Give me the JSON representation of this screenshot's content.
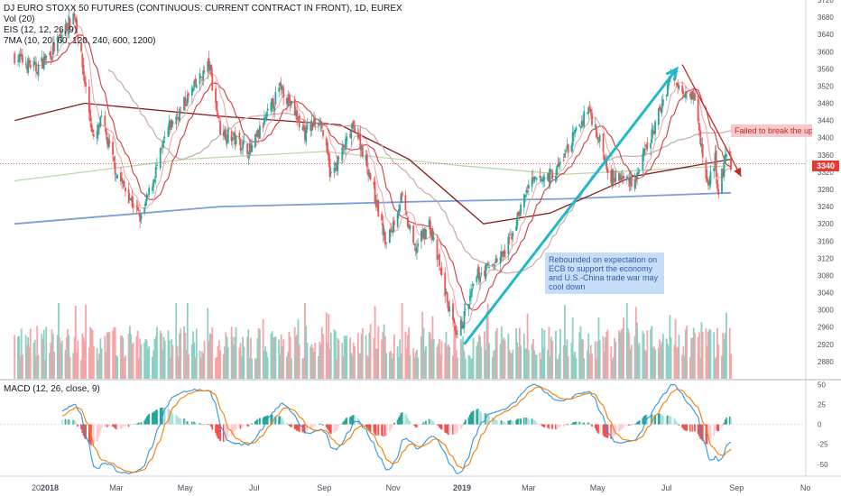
{
  "legend": {
    "title": "DJ EURO STOXX 50 FUTURES (CONTINUOUS: CURRENT CONTRACT IN FRONT), 1D, EUREX",
    "vol": "Vol (20)",
    "eis": "EIS (12, 12, 26, 9)",
    "ma": "7MA (10, 20, 60, 120, 240, 600, 1200)"
  },
  "macd_label": "MACD (12, 26, close, 9)",
  "annotations": {
    "blue_note": "Rebounded on expectation on ECB to support the economy and U.S.-China trade war may cool down",
    "red_note": "Failed to break the upper re",
    "last_price": "3340"
  },
  "colors": {
    "up": "#26a69a",
    "down": "#ef5350",
    "vol_up": "#8ccfc4",
    "vol_down": "#f6a4a6",
    "ma_pink": "#f0a0a5",
    "ma_red": "#d43a3a",
    "ma_darkred": "#8b1a1a",
    "ma_gray": "#c9a8a8",
    "ma_green": "#b8d9a8",
    "ma_blue": "#7b9fd6",
    "macd_line": "#2f96e0",
    "signal_line": "#f57c00",
    "arrow_up": "#22b8c9",
    "arrow_down": "#c62828"
  },
  "chart_data": [
    {
      "type": "candlestick",
      "title": "DJ EURO STOXX 50 FUTURES (CONTINUOUS: CURRENT CONTRACT IN FRONT), 1D, EUREX",
      "x_ticks": [
        "20",
        "2018",
        "Mar",
        "May",
        "Jul",
        "Sep",
        "Nov",
        "2019",
        "Mar",
        "May",
        "Jul",
        "Sep",
        "No"
      ],
      "y_ticks": [
        2880,
        2920,
        2960,
        3000,
        3040,
        3080,
        3120,
        3160,
        3200,
        3240,
        3280,
        3320,
        3360,
        3400,
        3440,
        3480,
        3520,
        3560,
        3600,
        3640,
        3680,
        3720
      ],
      "ylim": [
        2840,
        3720
      ],
      "anchors": [
        {
          "date": "2017-12-01",
          "close": 3590
        },
        {
          "date": "2017-12-20",
          "close": 3560
        },
        {
          "date": "2018-01-03",
          "close": 3600
        },
        {
          "date": "2018-01-23",
          "close": 3690
        },
        {
          "date": "2018-02-09",
          "close": 3390
        },
        {
          "date": "2018-02-16",
          "close": 3440
        },
        {
          "date": "2018-03-01",
          "close": 3320
        },
        {
          "date": "2018-03-23",
          "close": 3210
        },
        {
          "date": "2018-04-16",
          "close": 3420
        },
        {
          "date": "2018-05-22",
          "close": 3570
        },
        {
          "date": "2018-06-01",
          "close": 3420
        },
        {
          "date": "2018-06-28",
          "close": 3370
        },
        {
          "date": "2018-07-25",
          "close": 3520
        },
        {
          "date": "2018-08-15",
          "close": 3410
        },
        {
          "date": "2018-08-28",
          "close": 3450
        },
        {
          "date": "2018-09-07",
          "close": 3310
        },
        {
          "date": "2018-09-28",
          "close": 3430
        },
        {
          "date": "2018-10-11",
          "close": 3320
        },
        {
          "date": "2018-10-26",
          "close": 3150
        },
        {
          "date": "2018-11-08",
          "close": 3260
        },
        {
          "date": "2018-11-20",
          "close": 3140
        },
        {
          "date": "2018-12-03",
          "close": 3200
        },
        {
          "date": "2018-12-27",
          "close": 2930
        },
        {
          "date": "2019-01-15",
          "close": 3080
        },
        {
          "date": "2019-02-08",
          "close": 3130
        },
        {
          "date": "2019-03-01",
          "close": 3290
        },
        {
          "date": "2019-03-25",
          "close": 3320
        },
        {
          "date": "2019-04-23",
          "close": 3470
        },
        {
          "date": "2019-05-13",
          "close": 3310
        },
        {
          "date": "2019-06-03",
          "close": 3300
        },
        {
          "date": "2019-06-20",
          "close": 3420
        },
        {
          "date": "2019-07-04",
          "close": 3540
        },
        {
          "date": "2019-07-25",
          "close": 3500
        },
        {
          "date": "2019-08-06",
          "close": 3290
        },
        {
          "date": "2019-08-13",
          "close": 3350
        },
        {
          "date": "2019-08-15",
          "close": 3270
        },
        {
          "date": "2019-08-23",
          "close": 3360
        },
        {
          "date": "2019-08-27",
          "close": 3340
        }
      ],
      "moving_averages": [
        {
          "color": "ma_blue",
          "points": [
            [
              "2017-12-01",
              3200
            ],
            [
              "2018-06-01",
              3240
            ],
            [
              "2018-12-01",
              3252
            ],
            [
              "2019-04-01",
              3258
            ],
            [
              "2019-08-27",
              3272
            ]
          ]
        },
        {
          "color": "ma_green",
          "points": [
            [
              "2017-12-01",
              3300
            ],
            [
              "2018-05-01",
              3350
            ],
            [
              "2018-09-01",
              3368
            ],
            [
              "2019-01-01",
              3335
            ],
            [
              "2019-04-01",
              3315
            ],
            [
              "2019-08-27",
              3335
            ]
          ]
        },
        {
          "color": "ma_darkred",
          "points": [
            [
              "2017-12-01",
              3440
            ],
            [
              "2018-02-01",
              3480
            ],
            [
              "2018-06-01",
              3450
            ],
            [
              "2018-09-15",
              3430
            ],
            [
              "2018-11-15",
              3350
            ],
            [
              "2019-01-20",
              3200
            ],
            [
              "2019-03-20",
              3225
            ],
            [
              "2019-06-01",
              3310
            ],
            [
              "2019-08-27",
              3350
            ]
          ]
        }
      ],
      "annotations": [
        {
          "type": "arrow",
          "color": "arrow_up",
          "from": [
            "2019-01-03",
            2920
          ],
          "to": [
            "2019-07-10",
            3560
          ]
        },
        {
          "type": "arrow",
          "color": "arrow_down",
          "from": [
            "2019-07-15",
            3570
          ],
          "to": [
            "2019-09-05",
            3310
          ]
        }
      ],
      "last_price": 3340
    },
    {
      "type": "volume",
      "title": "Vol (20)"
    },
    {
      "type": "macd",
      "title": "MACD (12, 26, close, 9)",
      "y_ticks": [
        50,
        25,
        0,
        -25,
        -50
      ],
      "ylim": [
        -65,
        55
      ]
    }
  ]
}
